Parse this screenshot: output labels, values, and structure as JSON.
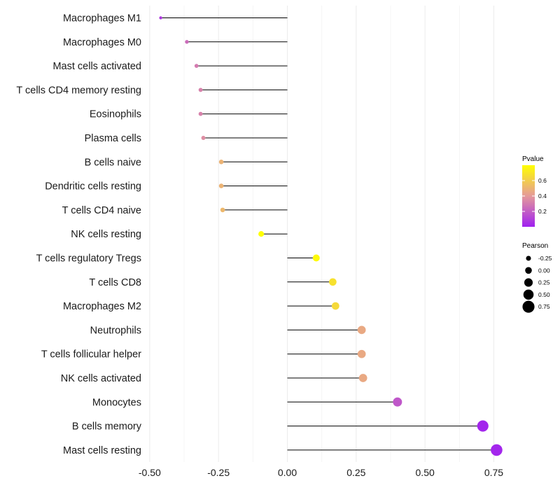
{
  "chart_data": {
    "type": "lollipop",
    "title": "",
    "xlabel": "",
    "ylabel": "",
    "xlim": [
      -0.52,
      0.79
    ],
    "xticks": [
      -0.5,
      -0.25,
      0.0,
      0.25,
      0.5,
      0.75
    ],
    "xtick_labels": [
      "-0.50",
      "-0.25",
      "0.00",
      "0.25",
      "0.50",
      "0.75"
    ],
    "grid": true,
    "categories": [
      "Macrophages M1",
      "Macrophages M0",
      "Mast cells activated",
      "T cells CD4 memory resting",
      "Eosinophils",
      "Plasma cells",
      "B cells naive",
      "Dendritic cells resting",
      "T cells CD4 naive",
      "NK cells resting",
      "T cells regulatory  Tregs ",
      "T cells CD8",
      "Macrophages M2",
      "Neutrophils",
      "T cells follicular helper",
      "NK cells activated",
      "Monocytes",
      "B cells memory",
      "Mast cells resting"
    ],
    "pearson": [
      -0.46,
      -0.365,
      -0.33,
      -0.315,
      -0.315,
      -0.305,
      -0.24,
      -0.24,
      -0.235,
      -0.095,
      0.105,
      0.165,
      0.175,
      0.27,
      0.27,
      0.275,
      0.4,
      0.71,
      0.76
    ],
    "pvalue": [
      0.08,
      0.25,
      0.3,
      0.32,
      0.32,
      0.36,
      0.5,
      0.5,
      0.52,
      0.8,
      0.78,
      0.68,
      0.65,
      0.46,
      0.46,
      0.46,
      0.18,
      0.02,
      0.02
    ],
    "color_legend": {
      "title": "Pvalue",
      "tick_values": [
        0.2,
        0.4,
        0.6
      ],
      "tick_labels": [
        "0.2",
        "0.4",
        "0.6"
      ],
      "range": [
        0.0,
        0.8
      ],
      "low_color": "#a020f0",
      "mid_color": "#e59a9a",
      "high_color": "#ffff00"
    },
    "size_legend": {
      "title": "Pearson",
      "values": [
        -0.25,
        0.0,
        0.25,
        0.5,
        0.75
      ],
      "labels": [
        "-0.25",
        "0.00",
        "0.25",
        "0.50",
        "0.75"
      ],
      "color": "#000000"
    },
    "stem_color": "#000000",
    "grid_color": "#ebebeb"
  }
}
